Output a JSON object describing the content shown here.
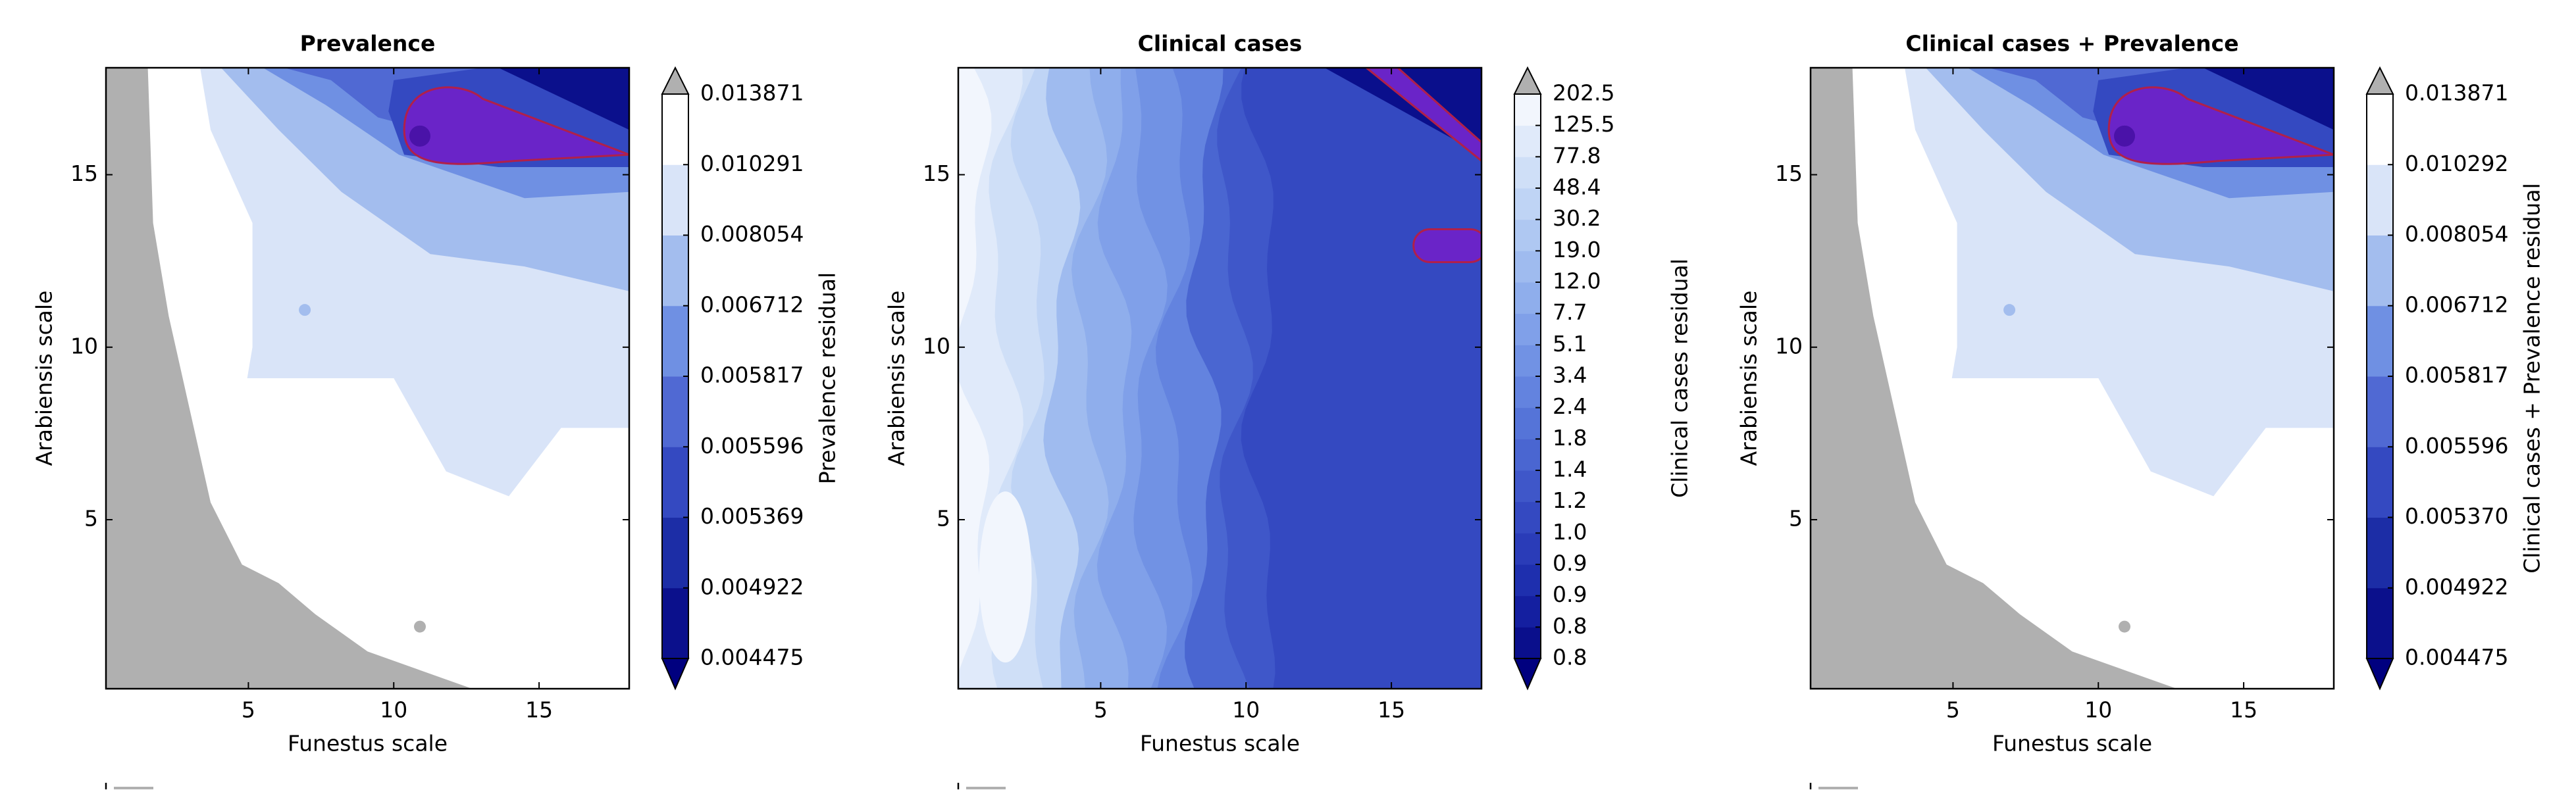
{
  "chart_data": [
    {
      "type": "contour",
      "title": "Prevalence",
      "xlabel": "Funestus scale",
      "ylabel": "Arabiensis scale",
      "xlim": [
        0.1,
        18.1
      ],
      "ylim": [
        0.1,
        18.1
      ],
      "xticks": [
        5,
        10,
        15
      ],
      "yticks": [
        5,
        10,
        15
      ],
      "colorbar": {
        "label": "Prevalence residual",
        "ticks": [
          0.004475,
          0.004922,
          0.005369,
          0.005596,
          0.005817,
          0.006712,
          0.008054,
          0.010291,
          0.013871
        ],
        "colors": [
          "#0b108c",
          "#1c2da6",
          "#3449c1",
          "#5069d3",
          "#6f90e3",
          "#a3bdee",
          "#d9e4f8",
          "#ffffff"
        ],
        "under_color": "#00007f",
        "over_color": "#b0b0b0"
      }
    },
    {
      "type": "contour",
      "title": "Clinical cases",
      "xlabel": "Funestus scale",
      "ylabel": "Arabiensis scale",
      "xlim": [
        0.1,
        18.1
      ],
      "ylim": [
        0.1,
        18.1
      ],
      "xticks": [
        5,
        10,
        15
      ],
      "yticks": [
        5,
        10,
        15
      ],
      "colorbar": {
        "label": "Clinical cases residual",
        "ticks": [
          0.8,
          0.8,
          0.9,
          0.9,
          {
            "value": 1,
            "label": "1.0"
          },
          1.2,
          1.4,
          1.8,
          2.4,
          3.4,
          5.1,
          7.7,
          {
            "value": 12,
            "label": "12.0"
          },
          {
            "value": 19,
            "label": "19.0"
          },
          30.2,
          48.4,
          77.8,
          125.5,
          202.5
        ],
        "colors": [
          "#0a0f8c",
          "#141fa0",
          "#1e2fae",
          "#2a3cb8",
          "#3449c1",
          "#3f57c9",
          "#4a66d1",
          "#5574d8",
          "#6383df",
          "#7192e4",
          "#80a0e9",
          "#8faeec",
          "#9fbbef",
          "#afc8f2",
          "#bfd4f5",
          "#cfdff7",
          "#e0eafa",
          "#f2f6fd"
        ],
        "under_color": "#00007f",
        "over_color": "#b0b0b0"
      }
    },
    {
      "type": "contour",
      "title": "Clinical cases + Prevalence",
      "xlabel": "Funestus scale",
      "ylabel": "Arabiensis scale",
      "xlim": [
        0.1,
        18.1
      ],
      "ylim": [
        0.1,
        18.1
      ],
      "xticks": [
        5,
        10,
        15
      ],
      "yticks": [
        5,
        10,
        15
      ],
      "colorbar": {
        "label": "Clinical cases + Prevalence residual",
        "ticks": [
          0.004475,
          0.004922,
          {
            "value": 0.00537,
            "label": "0.005370"
          },
          0.005596,
          0.005817,
          0.006712,
          0.008054,
          0.010292,
          0.013871
        ],
        "colors": [
          "#0b108c",
          "#1c2da6",
          "#3449c1",
          "#5069d3",
          "#6f90e3",
          "#a3bdee",
          "#d9e4f8",
          "#ffffff"
        ],
        "under_color": "#00007f",
        "over_color": "#b0b0b0"
      }
    }
  ]
}
